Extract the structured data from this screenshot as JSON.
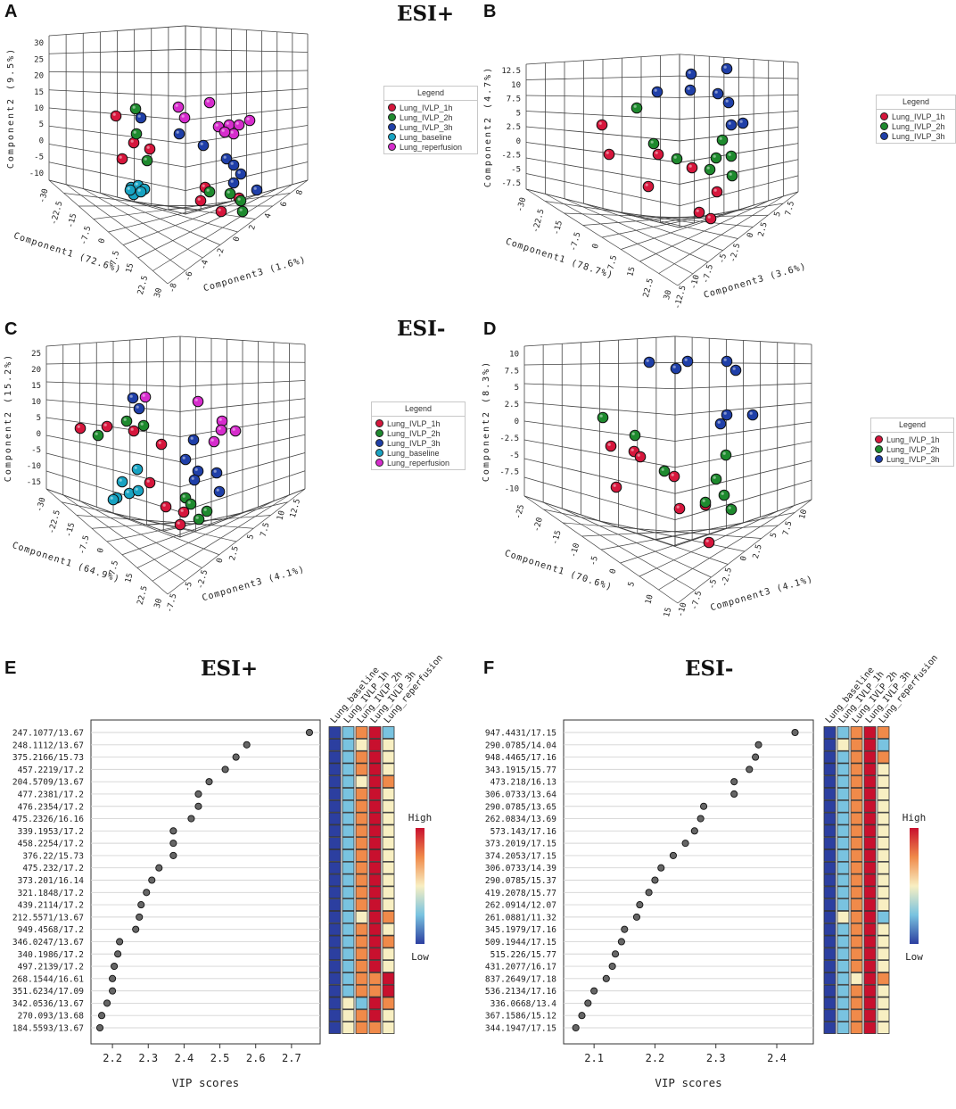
{
  "panels": {
    "A": {
      "letter": "A",
      "esi": "ESI+",
      "axis_y": "Component2 (9.5%)",
      "axis_x": "Component1 (72.6%)",
      "axis_z": "Component3 (1.6%)",
      "yticks": [
        "30",
        "25",
        "20",
        "15",
        "10",
        "5",
        "0",
        "-5",
        "-10"
      ],
      "xticks": [
        "-30",
        "-22.5",
        "-15",
        "-7.5",
        "0",
        "7.5",
        "15",
        "22.5",
        "30"
      ],
      "zticks": [
        "-8",
        "-6",
        "-4",
        "-2",
        "0",
        "2",
        "4",
        "6",
        "8"
      ]
    },
    "B": {
      "letter": "B",
      "axis_y": "Component2 (4.7%)",
      "axis_x": "Component1 (78.7%)",
      "axis_z": "Component3 (3.6%)",
      "yticks": [
        "12.5",
        "10",
        "7.5",
        "5",
        "2.5",
        "0",
        "-2.5",
        "-5",
        "-7.5"
      ],
      "xticks": [
        "-30",
        "-22.5",
        "-15",
        "-7.5",
        "0",
        "7.5",
        "15",
        "22.5",
        "30"
      ],
      "zticks": [
        "-12.5",
        "-10",
        "-7.5",
        "-5",
        "-2.5",
        "0",
        "2.5",
        "5",
        "7.5"
      ]
    },
    "C": {
      "letter": "C",
      "esi": "ESI-",
      "axis_y": "Component2 (15.2%)",
      "axis_x": "Component1 (64.9%)",
      "axis_z": "Component3 (4.1%)",
      "yticks": [
        "25",
        "20",
        "15",
        "10",
        "5",
        "0",
        "-5",
        "-10",
        "-15"
      ],
      "xticks": [
        "-30",
        "-22.5",
        "-15",
        "-7.5",
        "0",
        "7.5",
        "15",
        "22.5",
        "30"
      ],
      "zticks": [
        "-7.5",
        "-5",
        "-2.5",
        "0",
        "2.5",
        "5",
        "7.5",
        "10",
        "12.5"
      ]
    },
    "D": {
      "letter": "D",
      "axis_y": "Component2 (8.3%)",
      "axis_x": "Component1 (70.6%)",
      "axis_z": "Component3 (4.1%)",
      "yticks": [
        "10",
        "7.5",
        "5",
        "2.5",
        "0",
        "-2.5",
        "-5",
        "-7.5",
        "-10"
      ],
      "xticks": [
        "-25",
        "-20",
        "-15",
        "-10",
        "-5",
        "0",
        "5",
        "10",
        "15"
      ],
      "zticks": [
        "-10",
        "-7.5",
        "-5",
        "-2.5",
        "0",
        "2.5",
        "5",
        "7.5",
        "10"
      ]
    },
    "E": {
      "letter": "E",
      "esi": "ESI+"
    },
    "F": {
      "letter": "F",
      "esi": "ESI-"
    }
  },
  "legends": {
    "title": "Legend",
    "five": [
      "Lung_IVLP_1h",
      "Lung_IVLP_2h",
      "Lung_IVLP_3h",
      "Lung_baseline",
      "Lung_reperfusion"
    ],
    "three": [
      "Lung_IVLP_1h",
      "Lung_IVLP_2h",
      "Lung_IVLP_3h"
    ]
  },
  "colors": {
    "ivlp_1h": "#d6163c",
    "ivlp_2h": "#1e8a2e",
    "ivlp_3h": "#1f3fa8",
    "baseline": "#18a3c2",
    "reperfusion": "#d62ccc"
  },
  "heat_columns": [
    "Lung_baseline",
    "Lung_IVLP_1h",
    "Lung_IVLP_2h",
    "Lung_IVLP_3h",
    "Lung_reperfusion"
  ],
  "heat_scale": {
    "high": "High",
    "low": "Low"
  },
  "chart_data": [
    {
      "type": "scatter",
      "panel": "E",
      "title": "ESI+",
      "xlabel": "VIP scores",
      "xlim": [
        2.14,
        2.78
      ],
      "xticks": [
        2.2,
        2.3,
        2.4,
        2.5,
        2.6,
        2.7
      ],
      "labels": [
        "247.1077/13.67",
        "248.1112/13.67",
        "375.2166/15.73",
        "457.2219/17.2",
        "204.5709/13.67",
        "477.2381/17.2",
        "476.2354/17.2",
        "475.2326/16.16",
        "339.1953/17.2",
        "458.2254/17.2",
        "376.22/15.73",
        "475.232/17.2",
        "373.201/16.14",
        "321.1848/17.2",
        "439.2114/17.2",
        "212.5571/13.67",
        "949.4568/17.2",
        "346.0247/13.67",
        "340.1986/17.2",
        "497.2139/17.2",
        "268.1544/16.61",
        "351.6234/17.09",
        "342.0536/13.67",
        "270.093/13.68",
        "184.5593/13.67"
      ],
      "values": [
        2.75,
        2.575,
        2.545,
        2.515,
        2.47,
        2.44,
        2.44,
        2.42,
        2.37,
        2.37,
        2.37,
        2.33,
        2.31,
        2.295,
        2.28,
        2.275,
        2.265,
        2.22,
        2.215,
        2.205,
        2.2,
        2.2,
        2.185,
        2.17,
        2.165
      ],
      "heat": [
        [
          1,
          2,
          4,
          5,
          2
        ],
        [
          1,
          2,
          3,
          5,
          3
        ],
        [
          1,
          2,
          4,
          5,
          3
        ],
        [
          1,
          2,
          4,
          5,
          3
        ],
        [
          1,
          2,
          3,
          5,
          4
        ],
        [
          1,
          2,
          4,
          5,
          3
        ],
        [
          1,
          2,
          4,
          5,
          3
        ],
        [
          1,
          2,
          4,
          5,
          3
        ],
        [
          1,
          2,
          4,
          5,
          3
        ],
        [
          1,
          2,
          4,
          5,
          3
        ],
        [
          1,
          2,
          4,
          5,
          3
        ],
        [
          1,
          2,
          4,
          5,
          3
        ],
        [
          1,
          2,
          4,
          5,
          3
        ],
        [
          1,
          2,
          4,
          5,
          3
        ],
        [
          1,
          2,
          4,
          5,
          3
        ],
        [
          1,
          2,
          3,
          5,
          4
        ],
        [
          1,
          2,
          4,
          5,
          3
        ],
        [
          1,
          2,
          4,
          5,
          4
        ],
        [
          1,
          2,
          4,
          5,
          3
        ],
        [
          1,
          2,
          4,
          5,
          3
        ],
        [
          1,
          2,
          4,
          4,
          5
        ],
        [
          1,
          2,
          4,
          4,
          5
        ],
        [
          1,
          3,
          2,
          5,
          4
        ],
        [
          1,
          3,
          4,
          5,
          3
        ],
        [
          1,
          3,
          4,
          4,
          3
        ]
      ]
    },
    {
      "type": "scatter",
      "panel": "F",
      "title": "ESI-",
      "xlabel": "VIP scores",
      "xlim": [
        2.05,
        2.46
      ],
      "xticks": [
        2.1,
        2.2,
        2.3,
        2.4
      ],
      "labels": [
        "947.4431/17.15",
        "290.0785/14.04",
        "948.4465/17.16",
        "343.1915/15.77",
        "473.218/16.13",
        "306.0733/13.64",
        "290.0785/13.65",
        "262.0834/13.69",
        "573.143/17.16",
        "373.2019/17.15",
        "374.2053/17.15",
        "306.0733/14.39",
        "290.0785/15.37",
        "419.2078/15.77",
        "262.0914/12.07",
        "261.0881/11.32",
        "345.1979/17.16",
        "509.1944/17.15",
        "515.226/15.77",
        "431.2077/16.17",
        "837.2649/17.18",
        "536.2134/17.16",
        "336.0668/13.4",
        "367.1586/15.12",
        "344.1947/17.15"
      ],
      "values": [
        2.43,
        2.37,
        2.365,
        2.355,
        2.33,
        2.33,
        2.28,
        2.275,
        2.265,
        2.25,
        2.23,
        2.21,
        2.2,
        2.19,
        2.175,
        2.17,
        2.15,
        2.145,
        2.135,
        2.13,
        2.12,
        2.1,
        2.09,
        2.08,
        2.07
      ],
      "heat": [
        [
          1,
          2,
          4,
          5,
          4
        ],
        [
          1,
          3,
          4,
          5,
          2
        ],
        [
          1,
          2,
          4,
          5,
          4
        ],
        [
          1,
          2,
          4,
          5,
          3
        ],
        [
          1,
          2,
          4,
          5,
          3
        ],
        [
          1,
          2,
          4,
          5,
          3
        ],
        [
          1,
          2,
          4,
          5,
          3
        ],
        [
          1,
          2,
          4,
          5,
          3
        ],
        [
          1,
          2,
          4,
          5,
          3
        ],
        [
          1,
          2,
          4,
          5,
          3
        ],
        [
          1,
          2,
          4,
          5,
          3
        ],
        [
          1,
          2,
          4,
          5,
          3
        ],
        [
          1,
          2,
          4,
          5,
          3
        ],
        [
          1,
          2,
          4,
          5,
          3
        ],
        [
          1,
          2,
          4,
          5,
          3
        ],
        [
          1,
          3,
          4,
          5,
          2
        ],
        [
          1,
          2,
          4,
          5,
          3
        ],
        [
          1,
          2,
          4,
          5,
          3
        ],
        [
          1,
          2,
          4,
          5,
          3
        ],
        [
          1,
          2,
          4,
          5,
          3
        ],
        [
          1,
          2,
          3,
          5,
          4
        ],
        [
          1,
          2,
          4,
          5,
          3
        ],
        [
          1,
          2,
          4,
          5,
          3
        ],
        [
          1,
          2,
          4,
          5,
          3
        ],
        [
          1,
          2,
          4,
          5,
          3
        ]
      ]
    },
    {
      "type": "scatter",
      "panel": "A",
      "points": [
        [
          "ivlp_1h",
          130,
          130
        ],
        [
          "ivlp_1h",
          150,
          160
        ],
        [
          "ivlp_1h",
          168,
          167
        ],
        [
          "ivlp_1h",
          137,
          178
        ],
        [
          "ivlp_1h",
          230,
          210
        ],
        [
          "ivlp_1h",
          225,
          225
        ],
        [
          "ivlp_1h",
          248,
          237
        ],
        [
          "ivlp_1h",
          268,
          222
        ],
        [
          "ivlp_2h",
          152,
          122
        ],
        [
          "ivlp_2h",
          153,
          150
        ],
        [
          "ivlp_2h",
          165,
          180
        ],
        [
          "ivlp_2h",
          235,
          215
        ],
        [
          "ivlp_2h",
          258,
          217
        ],
        [
          "ivlp_2h",
          270,
          225
        ],
        [
          "ivlp_2h",
          272,
          237
        ],
        [
          "ivlp_3h",
          158,
          132
        ],
        [
          "ivlp_3h",
          201,
          150
        ],
        [
          "ivlp_3h",
          228,
          163
        ],
        [
          "ivlp_3h",
          254,
          178
        ],
        [
          "ivlp_3h",
          262,
          185
        ],
        [
          "ivlp_3h",
          270,
          195
        ],
        [
          "ivlp_3h",
          262,
          205
        ],
        [
          "ivlp_3h",
          288,
          213
        ],
        [
          "baseline",
          147,
          210
        ],
        [
          "baseline",
          155,
          208
        ],
        [
          "baseline",
          162,
          212
        ],
        [
          "baseline",
          150,
          218
        ],
        [
          "baseline",
          158,
          215
        ],
        [
          "baseline",
          146,
          213
        ],
        [
          "reperfusion",
          200,
          120
        ],
        [
          "reperfusion",
          207,
          132
        ],
        [
          "reperfusion",
          235,
          115
        ],
        [
          "reperfusion",
          245,
          142
        ],
        [
          "reperfusion",
          257,
          140
        ],
        [
          "reperfusion",
          262,
          150
        ],
        [
          "reperfusion",
          268,
          140
        ],
        [
          "reperfusion",
          280,
          135
        ],
        [
          "reperfusion",
          252,
          148
        ]
      ]
    },
    {
      "type": "scatter",
      "panel": "B",
      "points": [
        [
          "ivlp_1h",
          675,
          140
        ],
        [
          "ivlp_1h",
          683,
          173
        ],
        [
          "ivlp_1h",
          738,
          173
        ],
        [
          "ivlp_1h",
          776,
          188
        ],
        [
          "ivlp_1h",
          727,
          209
        ],
        [
          "ivlp_1h",
          804,
          215
        ],
        [
          "ivlp_1h",
          784,
          238
        ],
        [
          "ivlp_1h",
          797,
          245
        ],
        [
          "ivlp_2h",
          714,
          121
        ],
        [
          "ivlp_2h",
          733,
          161
        ],
        [
          "ivlp_2h",
          759,
          178
        ],
        [
          "ivlp_2h",
          810,
          157
        ],
        [
          "ivlp_2h",
          803,
          177
        ],
        [
          "ivlp_2h",
          796,
          190
        ],
        [
          "ivlp_2h",
          820,
          175
        ],
        [
          "ivlp_2h",
          821,
          197
        ],
        [
          "ivlp_3h",
          737,
          103
        ],
        [
          "ivlp_3h",
          775,
          83
        ],
        [
          "ivlp_3h",
          774,
          101
        ],
        [
          "ivlp_3h",
          805,
          105
        ],
        [
          "ivlp_3h",
          815,
          77
        ],
        [
          "ivlp_3h",
          817,
          115
        ],
        [
          "ivlp_3h",
          820,
          140
        ],
        [
          "ivlp_3h",
          833,
          138
        ]
      ]
    },
    {
      "type": "scatter",
      "panel": "C",
      "points": [
        [
          "ivlp_1h",
          90,
          480
        ],
        [
          "ivlp_1h",
          120,
          478
        ],
        [
          "ivlp_1h",
          150,
          483
        ],
        [
          "ivlp_1h",
          181,
          498
        ],
        [
          "ivlp_1h",
          168,
          541
        ],
        [
          "ivlp_1h",
          186,
          568
        ],
        [
          "ivlp_1h",
          206,
          574
        ],
        [
          "ivlp_1h",
          202,
          588
        ],
        [
          "ivlp_2h",
          110,
          488
        ],
        [
          "ivlp_2h",
          142,
          472
        ],
        [
          "ivlp_2h",
          161,
          477
        ],
        [
          "ivlp_2h",
          208,
          558
        ],
        [
          "ivlp_2h",
          214,
          565
        ],
        [
          "ivlp_2h",
          232,
          573
        ],
        [
          "ivlp_2h",
          223,
          582
        ],
        [
          "ivlp_3h",
          149,
          446
        ],
        [
          "ivlp_3h",
          156,
          458
        ],
        [
          "ivlp_3h",
          217,
          493
        ],
        [
          "ivlp_3h",
          208,
          515
        ],
        [
          "ivlp_3h",
          222,
          528
        ],
        [
          "ivlp_3h",
          218,
          538
        ],
        [
          "ivlp_3h",
          243,
          530
        ],
        [
          "ivlp_3h",
          246,
          551
        ],
        [
          "baseline",
          154,
          526
        ],
        [
          "baseline",
          137,
          540
        ],
        [
          "baseline",
          131,
          558
        ],
        [
          "baseline",
          145,
          553
        ],
        [
          "baseline",
          155,
          550
        ],
        [
          "baseline",
          127,
          560
        ],
        [
          "reperfusion",
          163,
          445
        ],
        [
          "reperfusion",
          222,
          450
        ],
        [
          "reperfusion",
          249,
          472
        ],
        [
          "reperfusion",
          264,
          483
        ],
        [
          "reperfusion",
          248,
          482
        ],
        [
          "reperfusion",
          240,
          495
        ]
      ]
    },
    {
      "type": "scatter",
      "panel": "D",
      "points": [
        [
          "ivlp_1h",
          685,
          500
        ],
        [
          "ivlp_1h",
          711,
          506
        ],
        [
          "ivlp_1h",
          718,
          512
        ],
        [
          "ivlp_1h",
          691,
          546
        ],
        [
          "ivlp_1h",
          756,
          534
        ],
        [
          "ivlp_1h",
          762,
          570
        ],
        [
          "ivlp_1h",
          791,
          566
        ],
        [
          "ivlp_1h",
          795,
          608
        ],
        [
          "ivlp_2h",
          676,
          468
        ],
        [
          "ivlp_2h",
          712,
          488
        ],
        [
          "ivlp_2h",
          745,
          528
        ],
        [
          "ivlp_2h",
          803,
          537
        ],
        [
          "ivlp_2h",
          814,
          510
        ],
        [
          "ivlp_2h",
          791,
          563
        ],
        [
          "ivlp_2h",
          812,
          555
        ],
        [
          "ivlp_2h",
          820,
          571
        ],
        [
          "ivlp_3h",
          728,
          406
        ],
        [
          "ivlp_3h",
          758,
          413
        ],
        [
          "ivlp_3h",
          771,
          405
        ],
        [
          "ivlp_3h",
          815,
          405
        ],
        [
          "ivlp_3h",
          825,
          415
        ],
        [
          "ivlp_3h",
          815,
          465
        ],
        [
          "ivlp_3h",
          808,
          475
        ],
        [
          "ivlp_3h",
          844,
          465
        ]
      ]
    }
  ]
}
